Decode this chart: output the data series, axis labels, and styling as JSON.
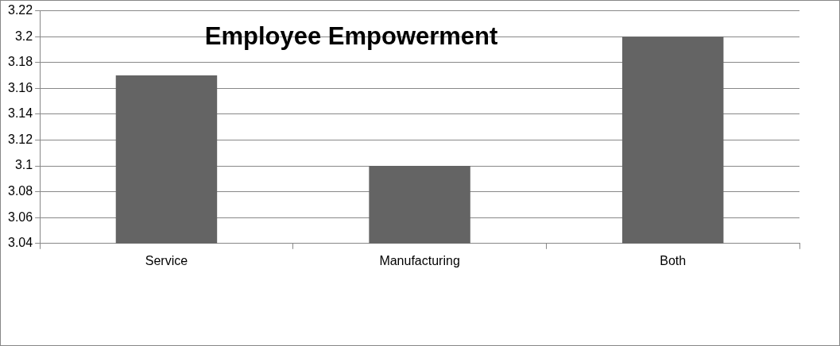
{
  "chart_data": {
    "type": "bar",
    "title": "Employee Empowerment",
    "categories": [
      "Service",
      "Manufacturing",
      "Both"
    ],
    "values": [
      3.17,
      3.1,
      3.2
    ],
    "color": "#646464",
    "ylim": [
      3.04,
      3.22
    ],
    "yticks": [
      3.04,
      3.06,
      3.08,
      3.1,
      3.12,
      3.14,
      3.16,
      3.18,
      3.2,
      3.22
    ],
    "grid": "y",
    "legend": false
  }
}
